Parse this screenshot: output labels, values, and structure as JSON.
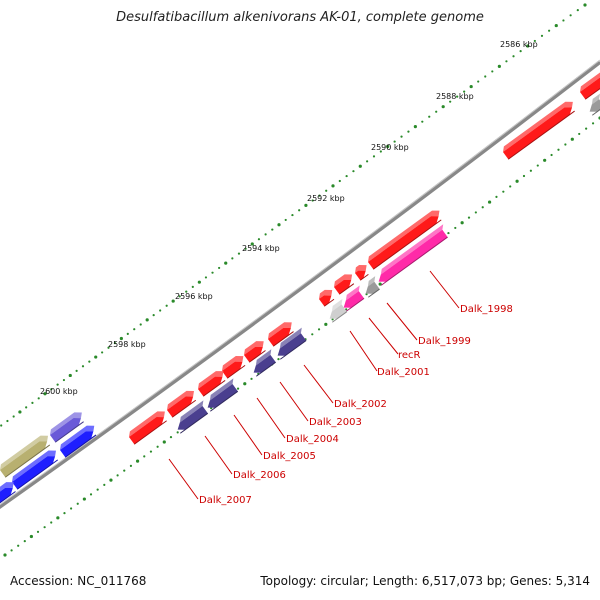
{
  "title": "Desulfatibacillum alkenivorans AK-01, complete genome",
  "footer": {
    "accession": "Accession: NC_011768",
    "summary": "Topology: circular; Length: 6,517,073 bp; Genes: 5,314"
  },
  "colors": {
    "backbone": "#888888",
    "label_red": "#cc0000",
    "forward_red": "#ff1a1a",
    "navy": "#4a3f8f",
    "magenta": "#ff2aa8",
    "gray": "#9a9a9a",
    "light_gray": "#cfcfcf",
    "blue": "#1f1fff",
    "violet": "#6a5ad8",
    "olive": "#b8b070",
    "tick_green": "#2a8a2a"
  },
  "scale_labels": [
    "2586 kbp",
    "2588 kbp",
    "2590 kbp",
    "2592 kbp",
    "2594 kbp",
    "2596 kbp",
    "2598 kbp",
    "2600 kbp"
  ],
  "gene_labels": [
    "Dalk_1998",
    "Dalk_1999",
    "recR",
    "Dalk_2001",
    "Dalk_2002",
    "Dalk_2003",
    "Dalk_2004",
    "Dalk_2005",
    "Dalk_2006",
    "Dalk_2007"
  ]
}
